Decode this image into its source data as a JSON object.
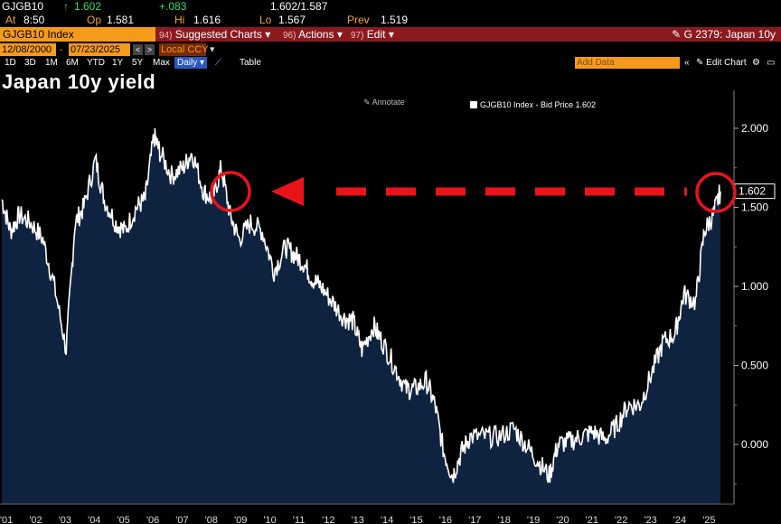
{
  "header": {
    "ticker": "GJGB10",
    "arrow": "↑",
    "last": "1.602",
    "change": "+.083",
    "bid_ask": "1.602/1.587",
    "at_label": "At",
    "at_time": "8:50",
    "op_label": "Op",
    "op": "1.581",
    "hi_label": "Hi",
    "hi": "1.616",
    "lo_label": "Lo",
    "lo": "1.567",
    "prev_label": "Prev",
    "prev": "1.519"
  },
  "toolbar": {
    "index_label": "GJGB10 Index",
    "menus": [
      {
        "num": "94)",
        "label": "Suggested Charts"
      },
      {
        "num": "96)",
        "label": "Actions"
      },
      {
        "num": "97)",
        "label": "Edit"
      }
    ],
    "right_label": "G 2379: Japan 10y"
  },
  "dates": {
    "start": "12/08/2000",
    "end": "07/23/2025",
    "ccy": "Local CCY"
  },
  "periods": [
    "1D",
    "3D",
    "1M",
    "6M",
    "YTD",
    "1Y",
    "5Y",
    "Max"
  ],
  "frequency": "Daily",
  "table_label": "Table",
  "add_data": "Add Data",
  "edit_chart": "Edit Chart",
  "title": "Japan 10y yield",
  "annotate": "Annotate",
  "legend_text": "GJGB10 Index - Bid Price 1.602",
  "last_value_label": "1.602",
  "colors": {
    "accent_orange": "#f59a1b",
    "bar_red": "#8b1a1f",
    "area_fill": "#0f2340",
    "line": "#ffffff",
    "dashed_arrow": "#e8141a"
  },
  "chart_data": {
    "type": "area",
    "ylim": [
      -0.3,
      2.15
    ],
    "yticks": [
      "2.000",
      "1.500",
      "1.000",
      "0.500",
      "0.000"
    ],
    "ytick_values": [
      2.0,
      1.5,
      1.0,
      0.5,
      0.0
    ],
    "xticks": [
      "'01",
      "'02",
      "'03",
      "'04",
      "'05",
      "'06",
      "'07",
      "'08",
      "'09",
      "'10",
      "'11",
      "'12",
      "'13",
      "'14",
      "'15",
      "'16",
      "'17",
      "'18",
      "'19",
      "'20",
      "'21",
      "'22",
      "'23",
      "'24",
      "'25"
    ],
    "x": [
      2001.0,
      2001.3,
      2001.6,
      2002.0,
      2002.4,
      2002.8,
      2003.2,
      2003.5,
      2003.8,
      2004.2,
      2004.5,
      2004.9,
      2005.2,
      2005.6,
      2005.9,
      2006.2,
      2006.4,
      2006.8,
      2007.2,
      2007.5,
      2007.9,
      2008.2,
      2008.5,
      2008.8,
      2009.1,
      2009.5,
      2009.9,
      2010.3,
      2010.7,
      2011.0,
      2011.3,
      2011.6,
      2011.9,
      2012.3,
      2012.7,
      2013.0,
      2013.3,
      2013.7,
      2014.0,
      2014.4,
      2014.8,
      2015.1,
      2015.5,
      2015.8,
      2016.1,
      2016.4,
      2016.7,
      2017.0,
      2017.5,
      2018.0,
      2018.5,
      2018.9,
      2019.3,
      2019.7,
      2020.0,
      2020.4,
      2020.8,
      2021.2,
      2021.6,
      2022.0,
      2022.4,
      2022.8,
      2023.2,
      2023.6,
      2024.0,
      2024.3,
      2024.7,
      2025.0,
      2025.3,
      2025.55
    ],
    "values": [
      1.55,
      1.35,
      1.45,
      1.4,
      1.3,
      1.0,
      0.6,
      1.4,
      1.5,
      1.8,
      1.55,
      1.4,
      1.35,
      1.5,
      1.55,
      1.95,
      1.85,
      1.7,
      1.75,
      1.85,
      1.6,
      1.55,
      1.75,
      1.45,
      1.3,
      1.4,
      1.35,
      1.1,
      1.25,
      1.2,
      1.15,
      1.05,
      1.0,
      0.9,
      0.8,
      0.78,
      0.6,
      0.75,
      0.65,
      0.5,
      0.35,
      0.35,
      0.4,
      0.25,
      -0.05,
      -0.2,
      -0.05,
      0.05,
      0.05,
      0.05,
      0.1,
      0.0,
      -0.1,
      -0.2,
      0.0,
      0.02,
      0.05,
      0.08,
      0.03,
      0.12,
      0.25,
      0.25,
      0.45,
      0.65,
      0.7,
      0.95,
      0.9,
      1.35,
      1.45,
      1.6
    ]
  }
}
